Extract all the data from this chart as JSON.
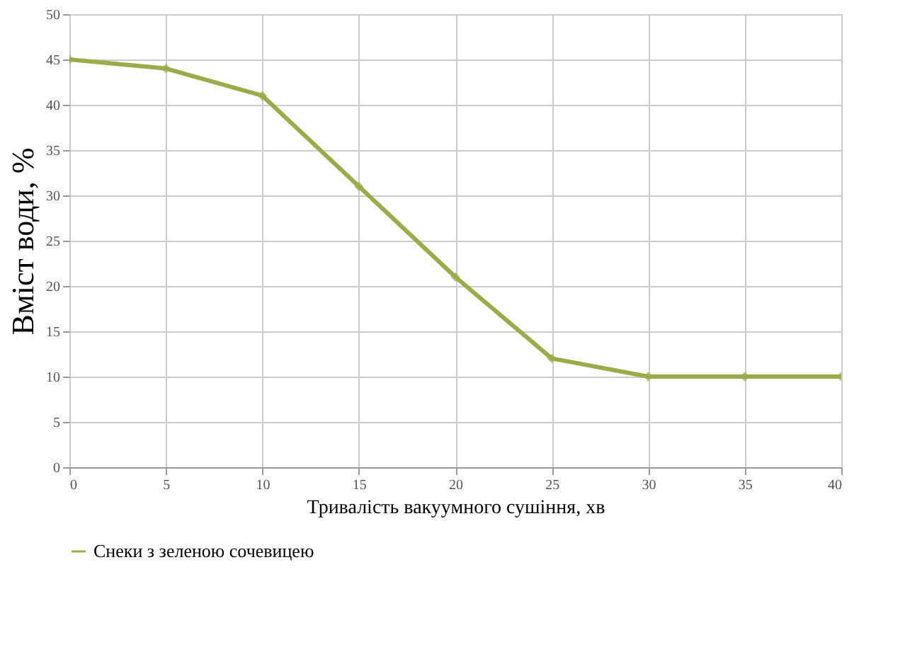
{
  "chart_data": {
    "type": "line",
    "xlabel": "Тривалість вакуумного сушіння, хв",
    "ylabel": "Вміст води, %",
    "x": [
      0,
      5,
      10,
      15,
      20,
      25,
      30,
      35,
      40
    ],
    "series": [
      {
        "name": "Снеки з зеленою сочевицею",
        "color": "#9aab4a",
        "values": [
          45,
          44,
          41,
          31,
          21,
          12,
          10,
          10,
          10
        ]
      }
    ],
    "xlim": [
      0,
      40
    ],
    "xticks": [
      0,
      5,
      10,
      15,
      20,
      25,
      30,
      35,
      40
    ],
    "ylim": [
      0,
      50
    ],
    "yticks": [
      0,
      5,
      10,
      15,
      20,
      25,
      30,
      35,
      40,
      45,
      50
    ],
    "grid": true,
    "legend": "bottom",
    "marker": "diamond",
    "line_style": "solid"
  }
}
